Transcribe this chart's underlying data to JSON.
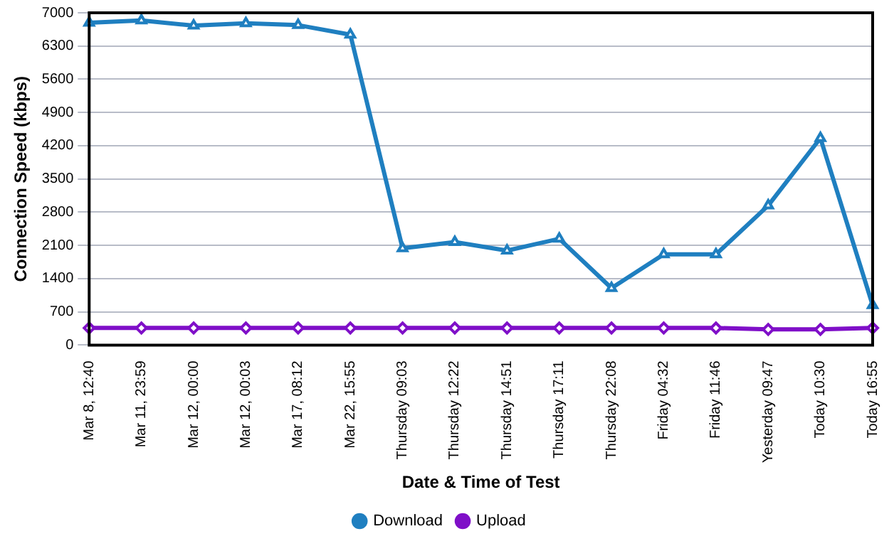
{
  "chart_data": {
    "type": "line",
    "xlabel": "Date & Time of Test",
    "ylabel": "Connection Speed (kbps)",
    "categories": [
      "Mar 8, 12:40",
      "Mar 11, 23:59",
      "Mar 12, 00:00",
      "Mar 12, 00:03",
      "Mar 17, 08:12",
      "Mar 22, 15:55",
      "Thursday 09:03",
      "Thursday 12:22",
      "Thursday 14:51",
      "Thursday 17:11",
      "Thursday 22:08",
      "Friday 04:32",
      "Friday 11:46",
      "Yesterday 09:47",
      "Today 10:30",
      "Today 16:55"
    ],
    "series": [
      {
        "name": "Download",
        "color": "#1f7fc0",
        "marker": "triangle",
        "values": [
          6790,
          6840,
          6730,
          6780,
          6740,
          6540,
          2040,
          2170,
          1990,
          2240,
          1200,
          1910,
          1910,
          2940,
          4360,
          840
        ]
      },
      {
        "name": "Upload",
        "color": "#7f0fc8",
        "marker": "diamond",
        "values": [
          360,
          360,
          360,
          360,
          360,
          360,
          360,
          360,
          360,
          360,
          360,
          360,
          360,
          330,
          330,
          360
        ]
      }
    ],
    "ylim": [
      0,
      7000
    ],
    "yticks": [
      0,
      700,
      1400,
      2100,
      2800,
      3500,
      4200,
      4900,
      5600,
      6300,
      7000
    ],
    "grid": "y",
    "legend": "bottom",
    "line_style": "solid"
  }
}
